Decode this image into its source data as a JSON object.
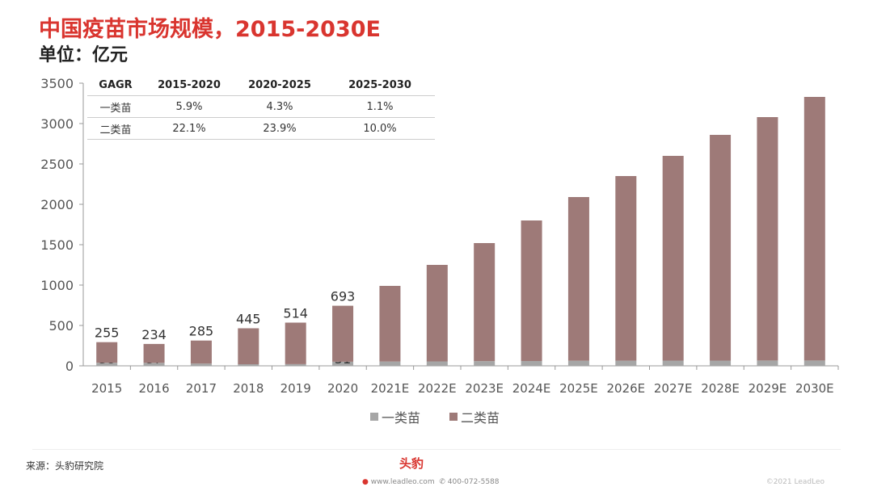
{
  "header": {
    "title": "中国疫苗市场规模，2015-2030E",
    "unit": "单位：亿元"
  },
  "gagr_table": {
    "header": [
      "GAGR",
      "2015-2020",
      "2020-2025",
      "2025-2030"
    ],
    "rows": [
      [
        "一类苗",
        "5.9%",
        "4.3%",
        "1.1%"
      ],
      [
        "二类苗",
        "22.1%",
        "23.9%",
        "10.0%"
      ]
    ]
  },
  "chart_data": {
    "type": "bar",
    "stacked": true,
    "categories": [
      "2015",
      "2016",
      "2017",
      "2018",
      "2019",
      "2020",
      "2021E",
      "2022E",
      "2023E",
      "2024E",
      "2025E",
      "2026E",
      "2027E",
      "2028E",
      "2029E",
      "2030E"
    ],
    "series": [
      {
        "name": "一类苗",
        "color": "#a6a6a6",
        "values": [
          38,
          37,
          28,
          20,
          21,
          51,
          53,
          55,
          58,
          60,
          63,
          64,
          65,
          65,
          66,
          66
        ],
        "labels": [
          "38",
          "37",
          "28",
          "20",
          "21",
          "51"
        ]
      },
      {
        "name": "二类苗",
        "color": "#9e7a78",
        "values": [
          255,
          234,
          285,
          445,
          514,
          693,
          937,
          1195,
          1462,
          1740,
          2027,
          2286,
          2535,
          2795,
          3014,
          3264
        ],
        "labels": [
          "255",
          "234",
          "285",
          "445",
          "514",
          "693"
        ]
      }
    ],
    "yticks": [
      "0",
      "500",
      "1000",
      "1500",
      "2000",
      "2500",
      "3000",
      "3500"
    ],
    "ylim": [
      0,
      3500
    ],
    "grid": false,
    "legend": "bottom"
  },
  "footer": {
    "source": "来源：头豹研究院",
    "logo": "头豹",
    "website": "www.leadleo.com",
    "phone": "400-072-5588",
    "copyright": "©2021 LeadLeo"
  }
}
